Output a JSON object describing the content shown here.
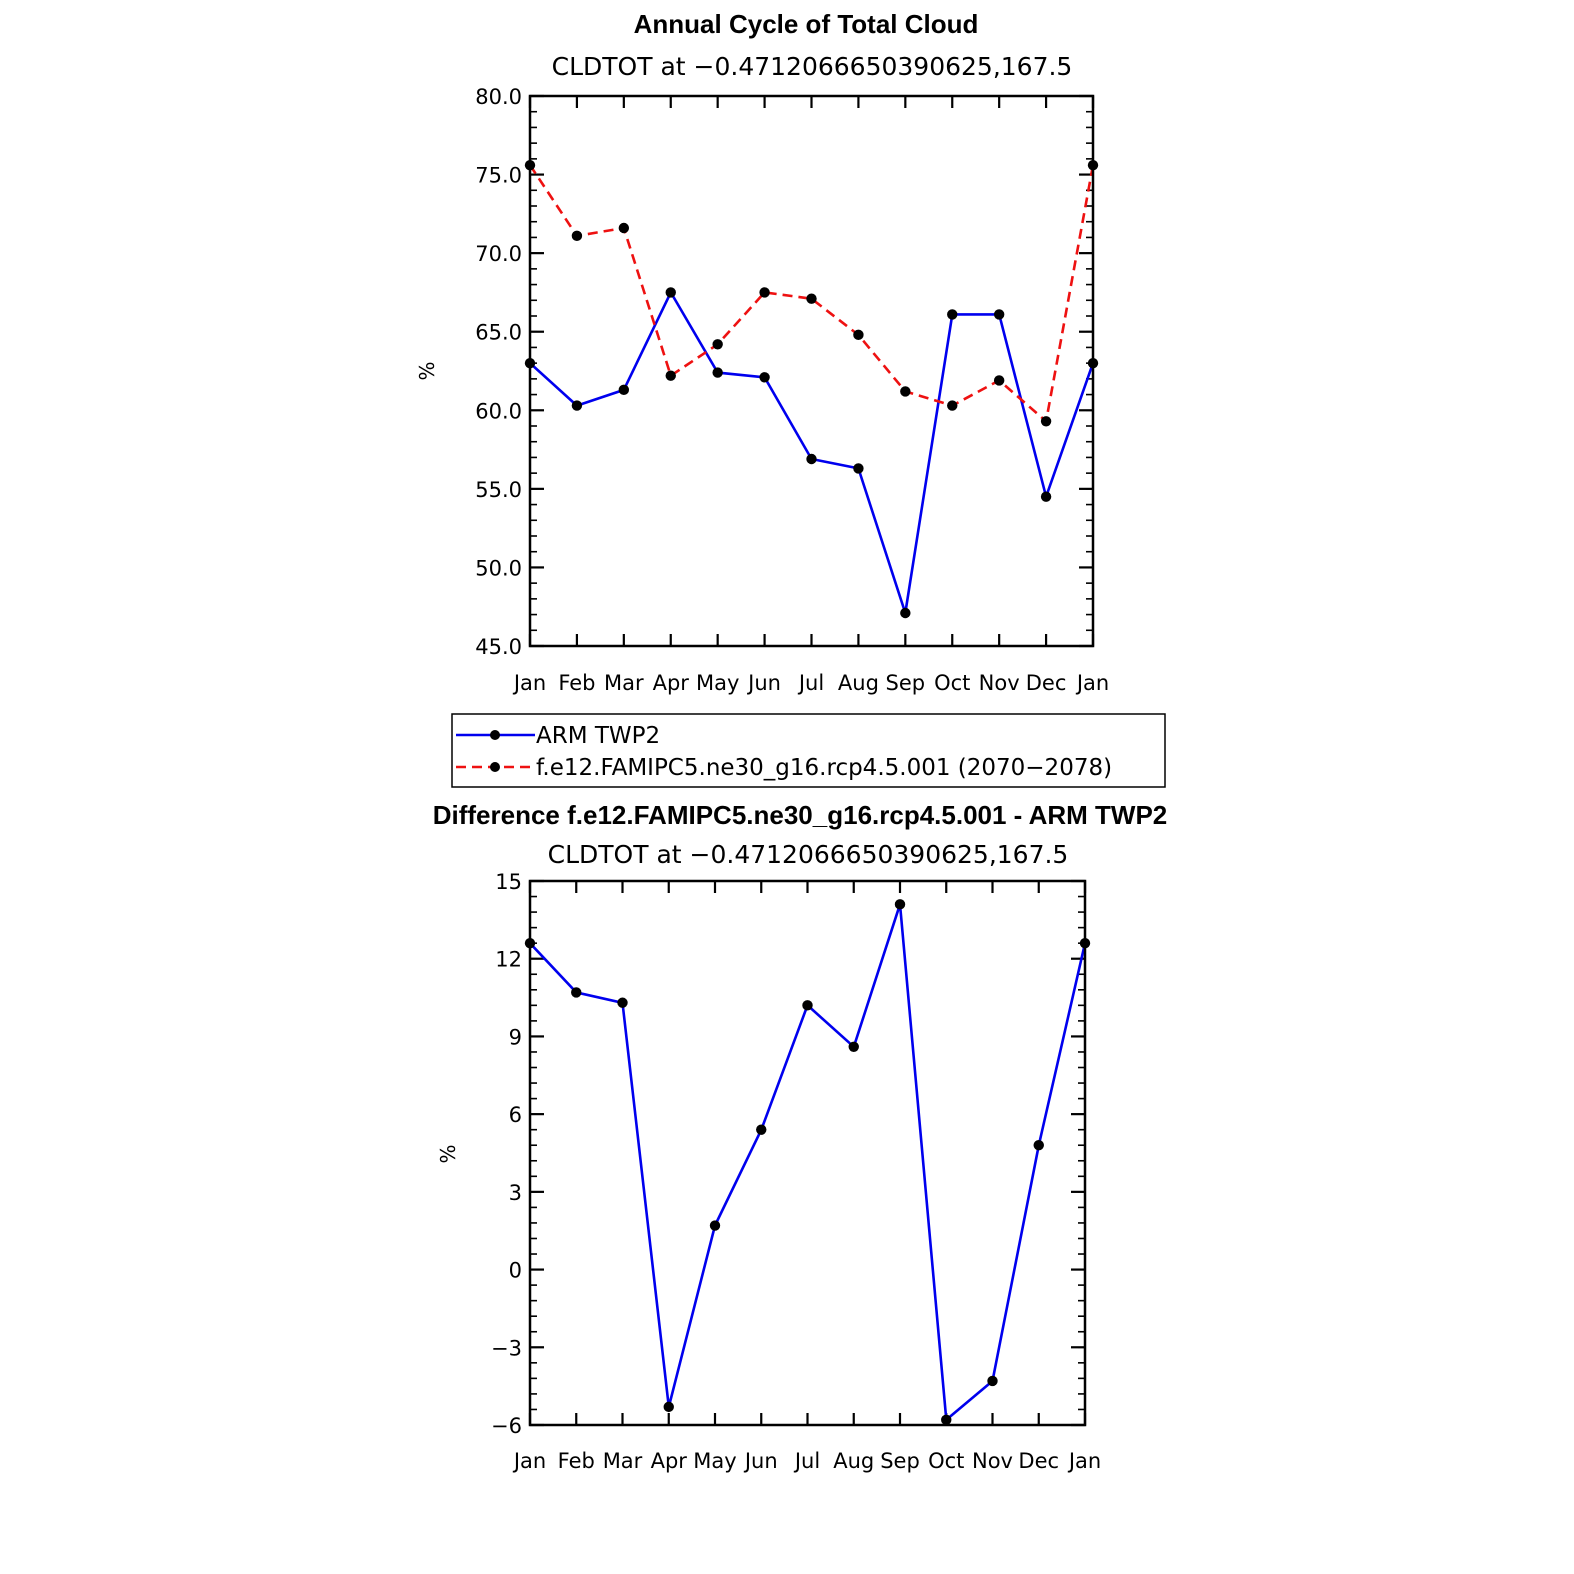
{
  "chart_data": [
    {
      "type": "line",
      "title": "Annual Cycle of Total Cloud",
      "subtitle": "CLDTOT at −0.4712066650390625,167.5",
      "ylabel": "%",
      "ylim": [
        45,
        80
      ],
      "yticks": [
        "80.0",
        "75.0",
        "70.0",
        "65.0",
        "60.0",
        "55.0",
        "50.0",
        "45.0"
      ],
      "ytick_values": [
        80,
        75,
        70,
        65,
        60,
        55,
        50,
        45
      ],
      "categories": [
        "Jan",
        "Feb",
        "Mar",
        "Apr",
        "May",
        "Jun",
        "Jul",
        "Aug",
        "Sep",
        "Oct",
        "Nov",
        "Dec",
        "Jan"
      ],
      "legend_placement": "below",
      "series": [
        {
          "name": "ARM TWP2",
          "color": "#0000ee",
          "dashed": false,
          "values": [
            63.0,
            60.3,
            61.3,
            67.5,
            62.4,
            62.1,
            56.9,
            56.3,
            47.1,
            66.1,
            66.1,
            54.5,
            63.0
          ]
        },
        {
          "name": "f.e12.FAMIPC5.ne30_g16.rcp4.5.001 (2070−2078)",
          "color": "#ee1111",
          "dashed": true,
          "values": [
            75.6,
            71.1,
            71.6,
            62.2,
            64.2,
            67.5,
            67.1,
            64.8,
            61.2,
            60.3,
            61.9,
            59.3,
            75.6
          ]
        }
      ]
    },
    {
      "type": "line",
      "title": "Difference f.e12.FAMIPC5.ne30_g16.rcp4.5.001 - ARM TWP2",
      "subtitle": "CLDTOT at −0.4712066650390625,167.5",
      "ylabel": "%",
      "ylim": [
        -6,
        15
      ],
      "yticks": [
        "15",
        "12",
        "9",
        "6",
        "3",
        "0",
        "−3",
        "−6"
      ],
      "ytick_values": [
        15,
        12,
        9,
        6,
        3,
        0,
        -3,
        -6
      ],
      "categories": [
        "Jan",
        "Feb",
        "Mar",
        "Apr",
        "May",
        "Jun",
        "Jul",
        "Aug",
        "Sep",
        "Oct",
        "Nov",
        "Dec",
        "Jan"
      ],
      "series": [
        {
          "color": "#0000ee",
          "dashed": false,
          "values": [
            12.6,
            10.7,
            10.3,
            -5.3,
            1.7,
            5.4,
            10.2,
            8.6,
            14.1,
            -5.8,
            -4.3,
            4.8,
            12.6
          ]
        }
      ]
    }
  ]
}
